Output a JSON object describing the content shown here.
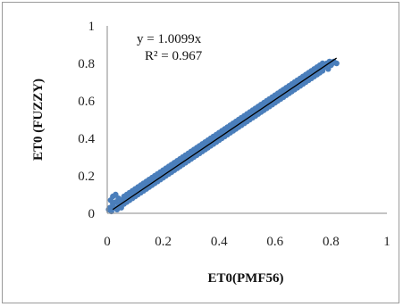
{
  "chart_data": {
    "type": "scatter",
    "xlabel": "ET0(PMF56)",
    "ylabel": "ET0 (FUZZY)",
    "xlim": [
      0,
      1
    ],
    "ylim": [
      0,
      1
    ],
    "x_ticks": [
      "0",
      "0.2",
      "0.4",
      "0.6",
      "0.8",
      "1"
    ],
    "y_ticks": [
      "0",
      "0.2",
      "0.4",
      "0.6",
      "0.8",
      "1"
    ],
    "grid": false,
    "legend": "none",
    "marker_color": "#4a7ebb",
    "trendline_color": "#000000",
    "trendline": {
      "equation": "y = 1.0099x",
      "r_squared": "R² = 0.967",
      "slope": 1.0099,
      "x_end": 0.82
    },
    "series": [
      {
        "points": [
          [
            0.005,
            0.02
          ],
          [
            0.01,
            0.03
          ],
          [
            0.012,
            0.07
          ],
          [
            0.015,
            0.01
          ],
          [
            0.02,
            0.05
          ],
          [
            0.02,
            0.09
          ],
          [
            0.025,
            0.03
          ],
          [
            0.03,
            0.06
          ],
          [
            0.03,
            0.1
          ],
          [
            0.035,
            0.02
          ],
          [
            0.04,
            0.05
          ],
          [
            0.04,
            0.08
          ],
          [
            0.045,
            0.04
          ],
          [
            0.05,
            0.07
          ],
          [
            0.05,
            0.03
          ],
          [
            0.055,
            0.06
          ],
          [
            0.06,
            0.09
          ],
          [
            0.06,
            0.05
          ],
          [
            0.065,
            0.07
          ],
          [
            0.07,
            0.1
          ],
          [
            0.07,
            0.06
          ],
          [
            0.075,
            0.08
          ],
          [
            0.08,
            0.11
          ],
          [
            0.08,
            0.07
          ],
          [
            0.085,
            0.09
          ],
          [
            0.09,
            0.12
          ],
          [
            0.09,
            0.08
          ],
          [
            0.095,
            0.1
          ],
          [
            0.1,
            0.13
          ],
          [
            0.1,
            0.09
          ],
          [
            0.105,
            0.11
          ],
          [
            0.11,
            0.14
          ],
          [
            0.11,
            0.1
          ],
          [
            0.115,
            0.12
          ],
          [
            0.12,
            0.15
          ],
          [
            0.12,
            0.11
          ],
          [
            0.125,
            0.13
          ],
          [
            0.13,
            0.16
          ],
          [
            0.13,
            0.12
          ],
          [
            0.135,
            0.14
          ],
          [
            0.14,
            0.17
          ],
          [
            0.14,
            0.13
          ],
          [
            0.145,
            0.15
          ],
          [
            0.15,
            0.18
          ],
          [
            0.15,
            0.14
          ],
          [
            0.155,
            0.16
          ],
          [
            0.16,
            0.19
          ],
          [
            0.16,
            0.15
          ],
          [
            0.165,
            0.17
          ],
          [
            0.17,
            0.2
          ],
          [
            0.17,
            0.16
          ],
          [
            0.175,
            0.18
          ],
          [
            0.18,
            0.21
          ],
          [
            0.18,
            0.17
          ],
          [
            0.185,
            0.19
          ],
          [
            0.19,
            0.22
          ],
          [
            0.19,
            0.18
          ],
          [
            0.195,
            0.2
          ],
          [
            0.2,
            0.23
          ],
          [
            0.2,
            0.19
          ],
          [
            0.205,
            0.21
          ],
          [
            0.21,
            0.24
          ],
          [
            0.21,
            0.2
          ],
          [
            0.215,
            0.22
          ],
          [
            0.22,
            0.25
          ],
          [
            0.22,
            0.21
          ],
          [
            0.225,
            0.23
          ],
          [
            0.23,
            0.26
          ],
          [
            0.23,
            0.22
          ],
          [
            0.235,
            0.24
          ],
          [
            0.24,
            0.27
          ],
          [
            0.24,
            0.23
          ],
          [
            0.245,
            0.25
          ],
          [
            0.25,
            0.28
          ],
          [
            0.25,
            0.24
          ],
          [
            0.255,
            0.26
          ],
          [
            0.26,
            0.29
          ],
          [
            0.26,
            0.25
          ],
          [
            0.265,
            0.27
          ],
          [
            0.27,
            0.3
          ],
          [
            0.27,
            0.26
          ],
          [
            0.275,
            0.28
          ],
          [
            0.28,
            0.31
          ],
          [
            0.28,
            0.27
          ],
          [
            0.285,
            0.29
          ],
          [
            0.29,
            0.32
          ],
          [
            0.29,
            0.28
          ],
          [
            0.295,
            0.3
          ],
          [
            0.3,
            0.33
          ],
          [
            0.3,
            0.29
          ],
          [
            0.305,
            0.31
          ],
          [
            0.31,
            0.34
          ],
          [
            0.31,
            0.3
          ],
          [
            0.315,
            0.32
          ],
          [
            0.32,
            0.35
          ],
          [
            0.32,
            0.31
          ],
          [
            0.325,
            0.33
          ],
          [
            0.33,
            0.36
          ],
          [
            0.33,
            0.32
          ],
          [
            0.335,
            0.34
          ],
          [
            0.34,
            0.37
          ],
          [
            0.34,
            0.33
          ],
          [
            0.345,
            0.35
          ],
          [
            0.35,
            0.38
          ],
          [
            0.35,
            0.34
          ],
          [
            0.355,
            0.36
          ],
          [
            0.36,
            0.39
          ],
          [
            0.36,
            0.35
          ],
          [
            0.365,
            0.37
          ],
          [
            0.37,
            0.4
          ],
          [
            0.37,
            0.36
          ],
          [
            0.375,
            0.38
          ],
          [
            0.38,
            0.41
          ],
          [
            0.38,
            0.37
          ],
          [
            0.385,
            0.39
          ],
          [
            0.39,
            0.42
          ],
          [
            0.39,
            0.38
          ],
          [
            0.395,
            0.4
          ],
          [
            0.4,
            0.43
          ],
          [
            0.4,
            0.39
          ],
          [
            0.405,
            0.41
          ],
          [
            0.41,
            0.44
          ],
          [
            0.41,
            0.4
          ],
          [
            0.415,
            0.42
          ],
          [
            0.42,
            0.45
          ],
          [
            0.42,
            0.41
          ],
          [
            0.425,
            0.43
          ],
          [
            0.43,
            0.46
          ],
          [
            0.43,
            0.42
          ],
          [
            0.435,
            0.44
          ],
          [
            0.44,
            0.47
          ],
          [
            0.44,
            0.43
          ],
          [
            0.445,
            0.45
          ],
          [
            0.45,
            0.48
          ],
          [
            0.45,
            0.44
          ],
          [
            0.455,
            0.46
          ],
          [
            0.46,
            0.49
          ],
          [
            0.46,
            0.45
          ],
          [
            0.465,
            0.47
          ],
          [
            0.47,
            0.5
          ],
          [
            0.47,
            0.46
          ],
          [
            0.475,
            0.48
          ],
          [
            0.48,
            0.51
          ],
          [
            0.48,
            0.47
          ],
          [
            0.485,
            0.49
          ],
          [
            0.49,
            0.52
          ],
          [
            0.49,
            0.48
          ],
          [
            0.495,
            0.5
          ],
          [
            0.5,
            0.53
          ],
          [
            0.5,
            0.49
          ],
          [
            0.505,
            0.51
          ],
          [
            0.51,
            0.54
          ],
          [
            0.51,
            0.5
          ],
          [
            0.515,
            0.52
          ],
          [
            0.52,
            0.55
          ],
          [
            0.52,
            0.51
          ],
          [
            0.525,
            0.53
          ],
          [
            0.53,
            0.56
          ],
          [
            0.53,
            0.52
          ],
          [
            0.535,
            0.54
          ],
          [
            0.54,
            0.57
          ],
          [
            0.54,
            0.53
          ],
          [
            0.545,
            0.55
          ],
          [
            0.55,
            0.58
          ],
          [
            0.55,
            0.54
          ],
          [
            0.555,
            0.56
          ],
          [
            0.56,
            0.59
          ],
          [
            0.56,
            0.55
          ],
          [
            0.565,
            0.57
          ],
          [
            0.57,
            0.6
          ],
          [
            0.57,
            0.56
          ],
          [
            0.575,
            0.58
          ],
          [
            0.58,
            0.61
          ],
          [
            0.58,
            0.57
          ],
          [
            0.585,
            0.59
          ],
          [
            0.59,
            0.62
          ],
          [
            0.59,
            0.58
          ],
          [
            0.595,
            0.6
          ],
          [
            0.6,
            0.63
          ],
          [
            0.6,
            0.59
          ],
          [
            0.605,
            0.61
          ],
          [
            0.61,
            0.64
          ],
          [
            0.61,
            0.6
          ],
          [
            0.615,
            0.62
          ],
          [
            0.62,
            0.65
          ],
          [
            0.62,
            0.61
          ],
          [
            0.625,
            0.63
          ],
          [
            0.63,
            0.66
          ],
          [
            0.63,
            0.62
          ],
          [
            0.635,
            0.64
          ],
          [
            0.64,
            0.67
          ],
          [
            0.64,
            0.63
          ],
          [
            0.645,
            0.65
          ],
          [
            0.65,
            0.68
          ],
          [
            0.65,
            0.64
          ],
          [
            0.655,
            0.66
          ],
          [
            0.66,
            0.69
          ],
          [
            0.66,
            0.65
          ],
          [
            0.665,
            0.67
          ],
          [
            0.67,
            0.7
          ],
          [
            0.67,
            0.66
          ],
          [
            0.675,
            0.68
          ],
          [
            0.68,
            0.71
          ],
          [
            0.68,
            0.67
          ],
          [
            0.685,
            0.69
          ],
          [
            0.69,
            0.72
          ],
          [
            0.69,
            0.68
          ],
          [
            0.695,
            0.7
          ],
          [
            0.7,
            0.73
          ],
          [
            0.7,
            0.69
          ],
          [
            0.705,
            0.71
          ],
          [
            0.71,
            0.74
          ],
          [
            0.71,
            0.7
          ],
          [
            0.715,
            0.72
          ],
          [
            0.72,
            0.75
          ],
          [
            0.72,
            0.71
          ],
          [
            0.725,
            0.73
          ],
          [
            0.73,
            0.76
          ],
          [
            0.73,
            0.72
          ],
          [
            0.735,
            0.74
          ],
          [
            0.74,
            0.77
          ],
          [
            0.74,
            0.73
          ],
          [
            0.745,
            0.75
          ],
          [
            0.75,
            0.78
          ],
          [
            0.75,
            0.74
          ],
          [
            0.755,
            0.76
          ],
          [
            0.76,
            0.79
          ],
          [
            0.76,
            0.75
          ],
          [
            0.765,
            0.77
          ],
          [
            0.77,
            0.8
          ],
          [
            0.77,
            0.76
          ],
          [
            0.775,
            0.78
          ],
          [
            0.78,
            0.79
          ],
          [
            0.785,
            0.8
          ],
          [
            0.79,
            0.77
          ],
          [
            0.795,
            0.81
          ],
          [
            0.8,
            0.79
          ],
          [
            0.805,
            0.8
          ],
          [
            0.81,
            0.81
          ],
          [
            0.82,
            0.8
          ]
        ]
      }
    ]
  }
}
